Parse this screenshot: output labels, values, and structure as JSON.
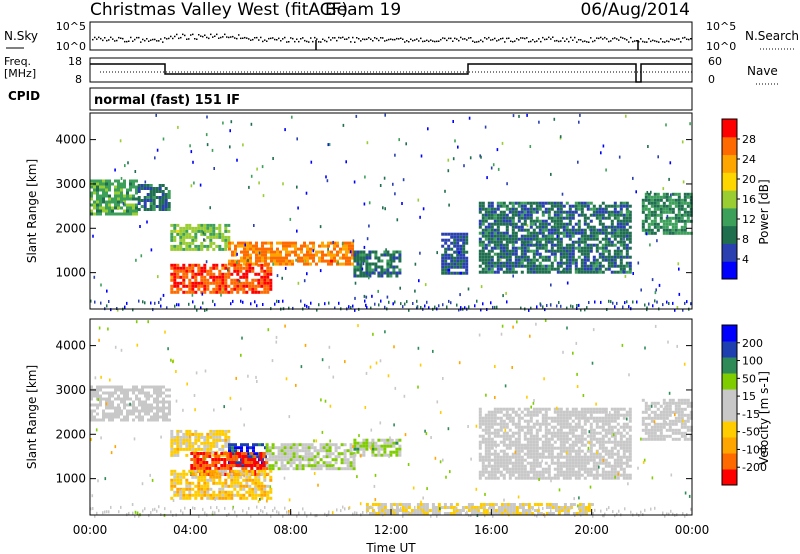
{
  "header": {
    "station": "Christmas Valley West (fitACF)",
    "beam": "Beam 19",
    "date": "06/Aug/2014"
  },
  "top_panels": {
    "nsky_label": "N.Sky",
    "nsky_ticks": [
      "10^5",
      "10^0"
    ],
    "nsearch_label": "N.Search",
    "nsearch_ticks": [
      "10^5",
      "10^0"
    ],
    "freq_label_1": "Freq.",
    "freq_label_2": "[MHz]",
    "freq_ticks": [
      "18",
      "8"
    ],
    "nave_label": "Nave",
    "nave_ticks": [
      "60",
      "0"
    ],
    "cpid_label": "CPID",
    "cpid_value": "normal (fast) 151 IF"
  },
  "colors": {
    "power_scale": [
      "#0000ff",
      "#2a3fb0",
      "#1f6e4e",
      "#3ca05a",
      "#9acd32",
      "#ffd700",
      "#ffa500",
      "#ff6a00",
      "#ff0000"
    ],
    "velocity_scale": [
      "#ff0000",
      "#ff6a00",
      "#ffa500",
      "#ffcc00",
      "#c8c8c8",
      "#c8c8c8",
      "#7fcc00",
      "#2e8b57",
      "#1e3fb0",
      "#0000ff"
    ]
  },
  "chart_data": [
    {
      "type": "heatmap",
      "name": "power",
      "xlabel": "",
      "ylabel": "Slant Range [km]",
      "xlim": [
        "00:00",
        "24:00"
      ],
      "ylim": [
        180,
        4600
      ],
      "yticks": [
        "1000",
        "2000",
        "3000",
        "4000"
      ],
      "colorbar_label": "Power [dB]",
      "colorbar_ticks": [
        "4",
        "8",
        "12",
        "16",
        "20",
        "24",
        "28"
      ],
      "colorbar_range": [
        0,
        30
      ],
      "regions": [
        {
          "t0": 0.0,
          "t1": 1.9,
          "r0": 2300,
          "r1": 3100,
          "power": 12
        },
        {
          "t0": 1.9,
          "t1": 3.2,
          "r0": 2400,
          "r1": 3000,
          "power": 8
        },
        {
          "t0": 3.2,
          "t1": 5.5,
          "r0": 1500,
          "r1": 2100,
          "power": 14
        },
        {
          "t0": 5.5,
          "t1": 10.5,
          "r0": 1200,
          "r1": 1700,
          "power": 24
        },
        {
          "t0": 10.5,
          "t1": 12.3,
          "r0": 900,
          "r1": 1500,
          "power": 8
        },
        {
          "t0": 3.2,
          "t1": 7.2,
          "r0": 550,
          "r1": 1200,
          "power": 26
        },
        {
          "t0": 14.0,
          "t1": 15.0,
          "r0": 1000,
          "r1": 1900,
          "power": 6
        },
        {
          "t0": 15.5,
          "t1": 21.5,
          "r0": 1000,
          "r1": 2600,
          "power": 8
        },
        {
          "t0": 22.0,
          "t1": 24.0,
          "r0": 1900,
          "r1": 2800,
          "power": 10
        }
      ]
    },
    {
      "type": "heatmap",
      "name": "velocity",
      "xlabel": "Time UT",
      "ylabel": "Slant Range [km]",
      "xlim": [
        "00:00",
        "24:00"
      ],
      "xticks": [
        "00:00",
        "04:00",
        "08:00",
        "12:00",
        "16:00",
        "20:00",
        "00:00"
      ],
      "ylim": [
        180,
        4600
      ],
      "yticks": [
        "1000",
        "2000",
        "3000",
        "4000"
      ],
      "colorbar_label": "Velocity [m s-1]",
      "colorbar_ticks": [
        "200",
        "100",
        "50",
        "15",
        "-15",
        "-50",
        "-100",
        "-200"
      ],
      "colorbar_range": [
        -250,
        250
      ],
      "regions": [
        {
          "t0": 0.0,
          "t1": 3.2,
          "r0": 2300,
          "r1": 3100,
          "velocity": 0
        },
        {
          "t0": 3.2,
          "t1": 5.5,
          "r0": 1500,
          "r1": 2100,
          "velocity": -60
        },
        {
          "t0": 5.5,
          "t1": 7.0,
          "r0": 1300,
          "r1": 1800,
          "velocity": 180
        },
        {
          "t0": 4.0,
          "t1": 7.0,
          "r0": 1100,
          "r1": 1600,
          "velocity": -200
        },
        {
          "t0": 7.0,
          "t1": 10.5,
          "r0": 1200,
          "r1": 1800,
          "velocity": 30
        },
        {
          "t0": 10.5,
          "t1": 12.3,
          "r0": 1500,
          "r1": 1900,
          "velocity": 60
        },
        {
          "t0": 3.2,
          "t1": 7.2,
          "r0": 550,
          "r1": 1200,
          "velocity": -80
        },
        {
          "t0": 15.5,
          "t1": 21.5,
          "r0": 1000,
          "r1": 2600,
          "velocity": 0
        },
        {
          "t0": 22.0,
          "t1": 24.0,
          "r0": 1900,
          "r1": 2800,
          "velocity": 0
        },
        {
          "t0": 11.0,
          "t1": 20.0,
          "r0": 180,
          "r1": 450,
          "velocity": -40
        }
      ]
    }
  ]
}
